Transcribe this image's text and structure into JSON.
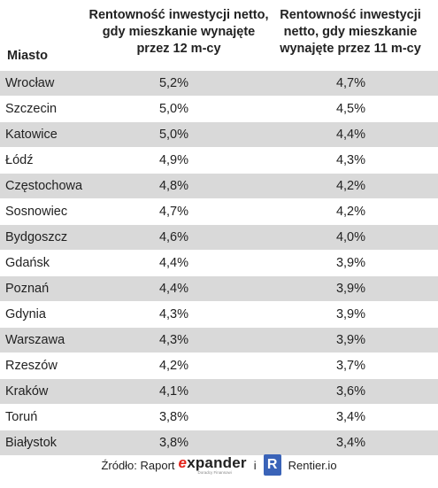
{
  "chart_data": {
    "type": "table",
    "headers": {
      "city": "Miasto",
      "col1": "Rentowność inwestycji netto, gdy mieszkanie wynajęte przez 12 m-cy",
      "col2": "Rentowność inwestycji netto, gdy mieszkanie wynajęte przez 11 m-cy"
    },
    "rows": [
      {
        "city": "Wrocław",
        "v12": "5,2%",
        "v11": "4,7%"
      },
      {
        "city": "Szczecin",
        "v12": "5,0%",
        "v11": "4,5%"
      },
      {
        "city": "Katowice",
        "v12": "5,0%",
        "v11": "4,4%"
      },
      {
        "city": "Łódź",
        "v12": "4,9%",
        "v11": "4,3%"
      },
      {
        "city": "Częstochowa",
        "v12": "4,8%",
        "v11": "4,2%"
      },
      {
        "city": "Sosnowiec",
        "v12": "4,7%",
        "v11": "4,2%"
      },
      {
        "city": "Bydgoszcz",
        "v12": "4,6%",
        "v11": "4,0%"
      },
      {
        "city": "Gdańsk",
        "v12": "4,4%",
        "v11": "3,9%"
      },
      {
        "city": "Poznań",
        "v12": "4,4%",
        "v11": "3,9%"
      },
      {
        "city": "Gdynia",
        "v12": "4,3%",
        "v11": "3,9%"
      },
      {
        "city": "Warszawa",
        "v12": "4,3%",
        "v11": "3,9%"
      },
      {
        "city": "Rzeszów",
        "v12": "4,2%",
        "v11": "3,7%"
      },
      {
        "city": "Kraków",
        "v12": "4,1%",
        "v11": "3,6%"
      },
      {
        "city": "Toruń",
        "v12": "3,8%",
        "v11": "3,4%"
      },
      {
        "city": "Białystok",
        "v12": "3,8%",
        "v11": "3,4%"
      }
    ]
  },
  "source": {
    "label": "Źródło: Raport",
    "expander_e": "e",
    "expander_rest": "xpander",
    "expander_tagline": "Doradcy Finansowi",
    "and": "i",
    "rentier_icon": "R",
    "rentier_label": "Rentier.io"
  },
  "colors": {
    "shaded_row": "#d9d9d9",
    "expander_red": "#e2231a",
    "rentier_blue": "#3a63b8"
  }
}
